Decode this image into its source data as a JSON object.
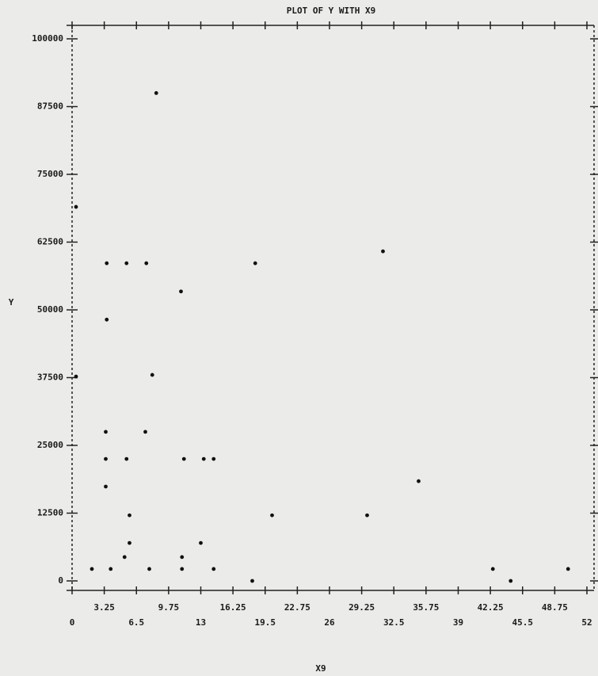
{
  "chart_data": {
    "type": "scatter",
    "title": "PLOT OF Y WITH X9",
    "x_label": "X9",
    "y_label": "Y",
    "x": [
      8.5,
      0.4,
      3.5,
      5.5,
      7.5,
      18.5,
      31.4,
      11,
      3.5,
      0.4,
      8.1,
      7.4,
      3.4,
      3.4,
      5.5,
      11.3,
      13.3,
      14.3,
      3.4,
      35,
      5.8,
      20.2,
      29.8,
      5.8,
      13,
      5.3,
      11.1,
      2,
      3.9,
      7.8,
      11.1,
      14.3,
      42.5,
      50.1,
      18.2,
      44.3
    ],
    "y": [
      90000,
      69000,
      58600,
      58600,
      58600,
      58600,
      60800,
      53400,
      48200,
      37700,
      38000,
      27500,
      27500,
      22500,
      22500,
      22500,
      22500,
      22500,
      17400,
      18400,
      12100,
      12100,
      12100,
      7000,
      7000,
      4400,
      4400,
      2200,
      2200,
      2200,
      2200,
      2200,
      2200,
      2200,
      0,
      0
    ],
    "color": "#111111",
    "xlim": [
      0,
      52
    ],
    "xticks": [
      0,
      3.25,
      6.5,
      9.75,
      13,
      16.25,
      19.5,
      22.75,
      26,
      29.25,
      32.5,
      35.75,
      39,
      42.25,
      45.5,
      48.75,
      52
    ],
    "ylim": [
      0,
      100000
    ],
    "yticks": [
      0,
      12500,
      25000,
      37500,
      50000,
      62500,
      75000,
      87500,
      100000
    ]
  }
}
